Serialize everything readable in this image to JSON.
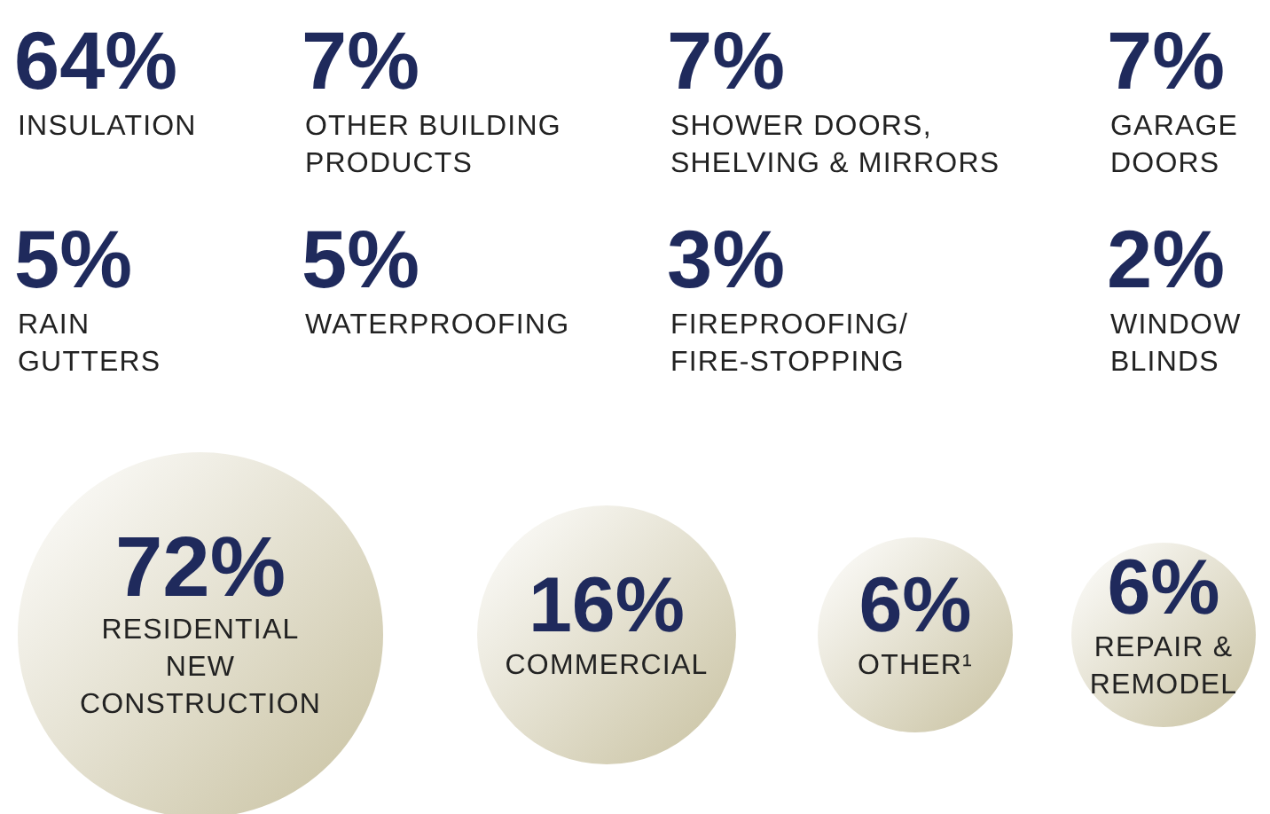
{
  "chart_data": [
    {
      "type": "other",
      "categories": [
        "INSULATION",
        "OTHER BUILDING\nPRODUCTS",
        "SHOWER DOORS,\nSHELVING & MIRRORS",
        "GARAGE\nDOORS",
        "RAIN\nGUTTERS",
        "WATERPROOFING",
        "FIREPROOFING/\nFIRE-STOPPING",
        "WINDOW\nBLINDS"
      ],
      "values": [
        64,
        7,
        7,
        7,
        5,
        5,
        3,
        2
      ],
      "value_labels": [
        "64%",
        "7%",
        "7%",
        "7%",
        "5%",
        "5%",
        "3%",
        "2%"
      ],
      "color": "#1f2a5c"
    },
    {
      "type": "other",
      "categories": [
        "RESIDENTIAL\nNEW\nCONSTRUCTION",
        "COMMERCIAL",
        "OTHER¹",
        "REPAIR &\nREMODEL"
      ],
      "values": [
        72,
        16,
        6,
        6
      ],
      "value_labels": [
        "72%",
        "16%",
        "6%",
        "6%"
      ],
      "color": "#1f2a5c",
      "colors": [
        "#c8c1a0",
        "#c8c1a0",
        "#c8c1a0",
        "#c8c1a0"
      ]
    }
  ]
}
